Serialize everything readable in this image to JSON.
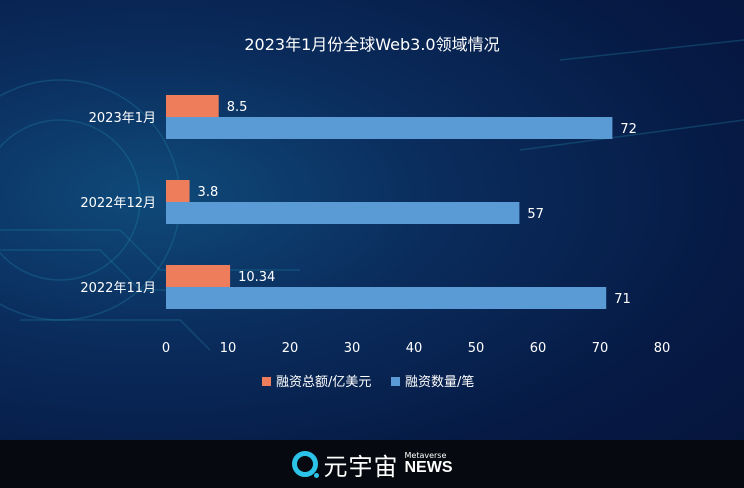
{
  "chart_data": {
    "type": "bar",
    "orientation": "horizontal",
    "title": "2023年1月份全球Web3.0领域情况",
    "categories": [
      "2023年1月",
      "2022年12月",
      "2022年11月"
    ],
    "series": [
      {
        "name": "融资总额/亿美元",
        "values": [
          8.5,
          3.8,
          10.34
        ],
        "labels": [
          "8.5",
          "3.8",
          "10.34"
        ],
        "color": "#ee7d5b"
      },
      {
        "name": "融资数量/笔",
        "values": [
          72,
          57,
          71
        ],
        "labels": [
          "72",
          "57",
          "71"
        ],
        "color": "#5b9bd5"
      }
    ],
    "xlim": [
      0,
      80
    ],
    "xticks": [
      "0",
      "10",
      "20",
      "30",
      "40",
      "50",
      "60",
      "70",
      "80"
    ],
    "grid": false,
    "legend": "bottom"
  },
  "footer": {
    "logo_cn": "元宇宙",
    "logo_small": "Metaverse",
    "logo_big": "NEWS"
  }
}
